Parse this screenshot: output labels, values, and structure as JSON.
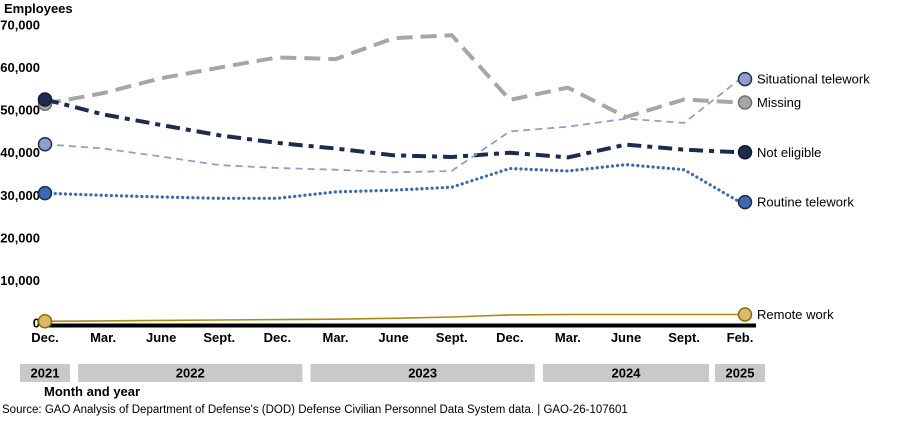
{
  "page": {
    "y_axis_title": "Employees",
    "x_axis_title": "Month and year",
    "source_line": "Source: GAO Analysis of Department of Defense's (DOD) Defense Civilian Personnel Data System data.  |  GAO-26-107601"
  },
  "chart_data": {
    "type": "line",
    "title": "",
    "ylabel": "Employees",
    "xlabel": "Month and year",
    "ylim": [
      0,
      70000
    ],
    "y_tick_step": 10000,
    "y_tick_labels": [
      "0",
      "10,000",
      "20,000",
      "30,000",
      "40,000",
      "50,000",
      "60,000",
      "70,000"
    ],
    "x_tick_labels": [
      "Dec.",
      "Mar.",
      "June",
      "Sept.",
      "Dec.",
      "Mar.",
      "June",
      "Sept.",
      "Dec.",
      "Mar.",
      "June",
      "Sept.",
      "Feb."
    ],
    "year_bands": [
      {
        "label": "2021",
        "from": 0,
        "to": 0
      },
      {
        "label": "2022",
        "from": 1,
        "to": 4
      },
      {
        "label": "2023",
        "from": 5,
        "to": 8
      },
      {
        "label": "2024",
        "from": 9,
        "to": 11
      },
      {
        "label": "2025",
        "from": 12,
        "to": 12
      }
    ],
    "grid": false,
    "legend_position": "right-of-line-ends",
    "series": [
      {
        "name": "Missing",
        "style": "long-dash",
        "color": "#a6a6a6",
        "marker_fill": "#a6a6a6",
        "marker_stroke": "#707070",
        "values": [
          51500,
          54000,
          57500,
          60000,
          62400,
          62000,
          66900,
          67600,
          52400,
          55300,
          48400,
          52500,
          51800
        ]
      },
      {
        "name": "Not eligible",
        "style": "dash-dot",
        "color": "#1c2b4f",
        "marker_fill": "#1c2b4f",
        "marker_stroke": "#10182e",
        "values": [
          52500,
          49000,
          46500,
          44100,
          42300,
          41000,
          39400,
          39000,
          40000,
          38900,
          41900,
          40700,
          40100
        ]
      },
      {
        "name": "Situational telework",
        "style": "thin-dash",
        "color": "#8d9fca",
        "marker_fill": "#8d9fca",
        "marker_stroke": "#1c2b4f",
        "values": [
          42000,
          41000,
          39100,
          37100,
          36400,
          36000,
          35400,
          35700,
          45000,
          46100,
          48000,
          47000,
          57300
        ]
      },
      {
        "name": "Routine telework",
        "style": "dotted",
        "color": "#3c69b0",
        "marker_fill": "#3c69b0",
        "marker_stroke": "#1c2b4f",
        "values": [
          30500,
          30000,
          29600,
          29300,
          29300,
          30800,
          31200,
          31900,
          36300,
          35700,
          37200,
          36000,
          28400
        ]
      },
      {
        "name": "Remote work",
        "style": "solid",
        "color": "#aa8c0d",
        "marker_fill": "#dcb96f",
        "marker_stroke": "#8a6d00",
        "values": [
          400,
          500,
          600,
          700,
          800,
          900,
          1100,
          1400,
          1900,
          2000,
          2000,
          2000,
          2000
        ]
      }
    ]
  }
}
